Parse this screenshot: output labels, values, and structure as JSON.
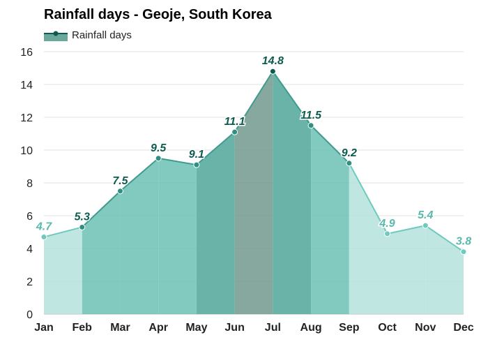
{
  "title": "Rainfall days - Geoje, South Korea",
  "colors": {
    "fill_light": "#b9e3df",
    "fill_medium": "#74c4b8",
    "fill_dark": "#5aab9f",
    "fill_peak": "#7a9f93",
    "line_light": "#6fc9bd",
    "line_dark": "#0d5b4f",
    "label_dark": "#0d5b4f",
    "label_light": "#5ab9ad",
    "grid": "#e0e0e0"
  },
  "chart_data": {
    "type": "area",
    "title": "Rainfall days - Geoje, South Korea",
    "categories": [
      "Jan",
      "Feb",
      "Mar",
      "Apr",
      "May",
      "Jun",
      "Jul",
      "Aug",
      "Sep",
      "Oct",
      "Nov",
      "Dec"
    ],
    "series": [
      {
        "name": "Rainfall days",
        "values": [
          4.7,
          5.3,
          7.5,
          9.5,
          9.1,
          11.1,
          14.8,
          11.5,
          9.2,
          4.9,
          5.4,
          3.8
        ]
      }
    ],
    "data_labels": [
      "4.7",
      "5.3",
      "7.5",
      "9.5",
      "9.1",
      "11.1",
      "14.8",
      "11.5",
      "9.2",
      "4.9",
      "5.4",
      "3.8"
    ],
    "ylim": [
      0,
      16
    ],
    "yticks": [
      "0",
      "2",
      "4",
      "6",
      "8",
      "10",
      "12",
      "14",
      "16"
    ],
    "grid": true,
    "legend": "top-left"
  }
}
